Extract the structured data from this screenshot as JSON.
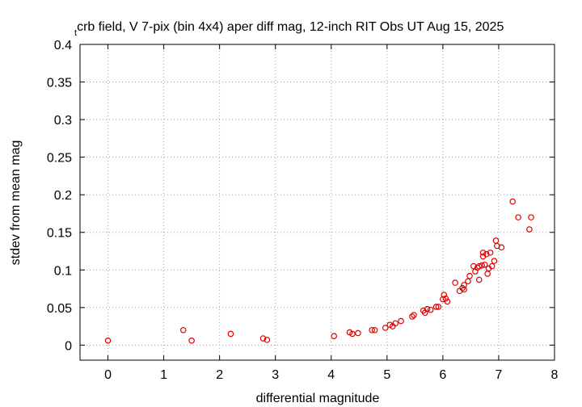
{
  "chart_data": {
    "type": "scatter",
    "title_sub": "t",
    "title": "crb field, V 7-pix (bin 4x4) aper diff mag,  12-inch RIT Obs UT Aug 15, 2025",
    "xlabel": "differential magnitude",
    "ylabel": "stdev from mean mag",
    "xlim": [
      -0.5,
      8
    ],
    "ylim": [
      -0.02,
      0.4
    ],
    "x_ticks": [
      "0",
      "1",
      "2",
      "3",
      "4",
      "5",
      "6",
      "7",
      "8"
    ],
    "x_tick_values": [
      0,
      1,
      2,
      3,
      4,
      5,
      6,
      7,
      8
    ],
    "y_ticks": [
      "0",
      "0.05",
      "0.1",
      "0.15",
      "0.2",
      "0.25",
      "0.3",
      "0.35",
      "0.4"
    ],
    "y_tick_values": [
      0,
      0.05,
      0.1,
      0.15,
      0.2,
      0.25,
      0.3,
      0.35,
      0.4
    ],
    "grid": true,
    "marker": "open-circle",
    "color": "#e00000",
    "points": [
      [
        0.0,
        0.006
      ],
      [
        1.35,
        0.02
      ],
      [
        1.5,
        0.006
      ],
      [
        2.2,
        0.015
      ],
      [
        2.78,
        0.009
      ],
      [
        2.85,
        0.007
      ],
      [
        4.05,
        0.012
      ],
      [
        4.33,
        0.017
      ],
      [
        4.38,
        0.015
      ],
      [
        4.48,
        0.016
      ],
      [
        4.73,
        0.02
      ],
      [
        4.78,
        0.02
      ],
      [
        4.97,
        0.023
      ],
      [
        5.05,
        0.027
      ],
      [
        5.1,
        0.025
      ],
      [
        5.15,
        0.029
      ],
      [
        5.25,
        0.032
      ],
      [
        5.45,
        0.038
      ],
      [
        5.48,
        0.04
      ],
      [
        5.65,
        0.046
      ],
      [
        5.68,
        0.043
      ],
      [
        5.72,
        0.048
      ],
      [
        5.78,
        0.047
      ],
      [
        5.88,
        0.051
      ],
      [
        5.92,
        0.051
      ],
      [
        6.0,
        0.061
      ],
      [
        6.02,
        0.067
      ],
      [
        6.05,
        0.062
      ],
      [
        6.08,
        0.058
      ],
      [
        6.22,
        0.083
      ],
      [
        6.3,
        0.072
      ],
      [
        6.35,
        0.076
      ],
      [
        6.38,
        0.074
      ],
      [
        6.38,
        0.08
      ],
      [
        6.45,
        0.085
      ],
      [
        6.48,
        0.092
      ],
      [
        6.55,
        0.105
      ],
      [
        6.58,
        0.098
      ],
      [
        6.62,
        0.103
      ],
      [
        6.65,
        0.087
      ],
      [
        6.65,
        0.105
      ],
      [
        6.7,
        0.106
      ],
      [
        6.72,
        0.118
      ],
      [
        6.72,
        0.123
      ],
      [
        6.75,
        0.107
      ],
      [
        6.78,
        0.121
      ],
      [
        6.8,
        0.095
      ],
      [
        6.82,
        0.102
      ],
      [
        6.85,
        0.123
      ],
      [
        6.88,
        0.105
      ],
      [
        6.92,
        0.112
      ],
      [
        6.95,
        0.139
      ],
      [
        6.97,
        0.132
      ],
      [
        7.05,
        0.13
      ],
      [
        7.25,
        0.191
      ],
      [
        7.35,
        0.17
      ],
      [
        7.55,
        0.154
      ],
      [
        7.58,
        0.17
      ]
    ]
  }
}
